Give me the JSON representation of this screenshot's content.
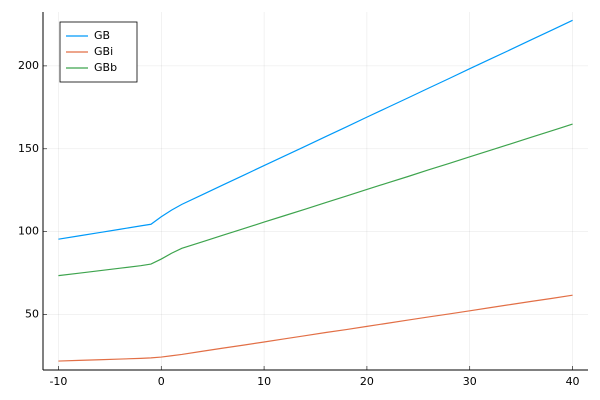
{
  "chart_data": {
    "type": "line",
    "x": [
      -10,
      -8,
      -6,
      -4,
      -2,
      -1,
      0,
      1,
      2,
      4,
      6,
      8,
      10,
      12,
      14,
      16,
      18,
      20,
      22,
      24,
      26,
      28,
      30,
      32,
      34,
      36,
      38,
      40
    ],
    "series": [
      {
        "name": "GB",
        "color": "#009af9",
        "values": [
          95.5,
          97.5,
          99.5,
          101.5,
          103.5,
          104.5,
          109,
          113,
          116.5,
          122.3,
          128.2,
          134,
          139.9,
          145.7,
          151.5,
          157.4,
          163.2,
          169.1,
          174.9,
          180.7,
          186.6,
          192.4,
          198.3,
          204.1,
          209.9,
          215.8,
          221.6,
          227.5
        ]
      },
      {
        "name": "GBi",
        "color": "#e26f46",
        "values": [
          22,
          22.4,
          22.8,
          23.2,
          23.6,
          23.9,
          24.4,
          25.2,
          26,
          27.9,
          29.8,
          31.6,
          33.5,
          35.4,
          37.3,
          39.2,
          41,
          42.9,
          44.8,
          46.7,
          48.6,
          50.4,
          52.3,
          54.2,
          56.1,
          58,
          59.8,
          61.7
        ]
      },
      {
        "name": "GBb",
        "color": "#3ea44e",
        "values": [
          73.5,
          75,
          76.5,
          78,
          79.5,
          80.5,
          83.5,
          87,
          90,
          93.9,
          97.9,
          101.8,
          105.8,
          109.7,
          113.6,
          117.6,
          121.5,
          125.5,
          129.4,
          133.3,
          137.3,
          141.2,
          145.2,
          149.1,
          153,
          157,
          160.9,
          164.9
        ]
      }
    ],
    "xlim": [
      -11.5,
      41.5
    ],
    "xticks": [
      -10,
      0,
      10,
      20,
      30,
      40
    ],
    "ylim": [
      16.6,
      232.5
    ],
    "yticks": [
      50,
      100,
      150,
      200
    ],
    "grid": true,
    "legend": "top-left"
  }
}
